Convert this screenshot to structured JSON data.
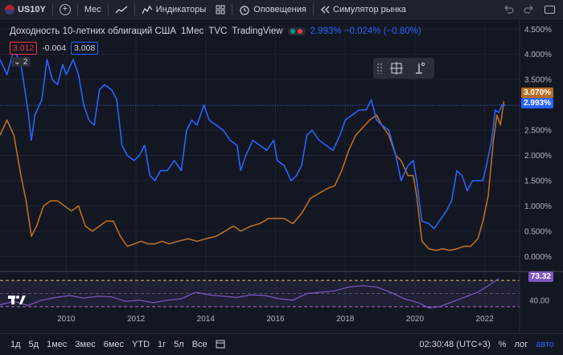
{
  "toolbar": {
    "symbol": "US10Y",
    "interval": "Мес",
    "indicators": "Индикаторы",
    "alerts": "Оповещения",
    "replay": "Симулятор рынка"
  },
  "legend": {
    "title": "Доходность 10-летних облигаций США",
    "interval": "1Мес",
    "exchange": "TVC",
    "source": "TradingView",
    "quote": "2.993% −0.024% (−0.80%)"
  },
  "quote_row": {
    "bid": "3.012",
    "spread": "-0.004",
    "ask": "3.008",
    "collapse_count": "2"
  },
  "price_tags": {
    "orange": "3.070%",
    "blue": "2.993%",
    "rsi": "73.32"
  },
  "colors": {
    "background": "#131722",
    "blue_line": "#2962ff",
    "orange_line": "#b86e22",
    "rsi_line": "#7e57c2",
    "tag_orange": "#b86e22",
    "tag_blue": "#2962ff"
  },
  "bottombar": {
    "ranges": [
      "1д",
      "5д",
      "1мес",
      "3мес",
      "6мес",
      "YTD",
      "1г",
      "5л",
      "Все"
    ],
    "time": "02:30:48 (UTC+3)",
    "percent": "%",
    "log": "лог",
    "auto": "авто"
  },
  "chart_data": {
    "type": "line",
    "y_axis_ticks": [
      "4.500%",
      "4.000%",
      "3.500%",
      "3.000%",
      "2.500%",
      "2.000%",
      "1.500%",
      "1.000%",
      "0.500%",
      "0.000%"
    ],
    "y_axis_values": [
      4.5,
      4.0,
      3.5,
      3.0,
      2.5,
      2.0,
      1.5,
      1.0,
      0.5,
      0.0
    ],
    "ylim": [
      -0.25,
      4.6
    ],
    "x_axis_ticks": [
      "2010",
      "2012",
      "2014",
      "2016",
      "2018",
      "2020",
      "2022"
    ],
    "xlim": [
      2008.1,
      2023.0
    ],
    "series": [
      {
        "color": "#2962ff",
        "points": [
          [
            2008.1,
            3.9
          ],
          [
            2008.3,
            3.6
          ],
          [
            2008.5,
            4.1
          ],
          [
            2008.7,
            3.8
          ],
          [
            2008.9,
            2.9
          ],
          [
            2009.0,
            2.3
          ],
          [
            2009.1,
            2.8
          ],
          [
            2009.3,
            3.1
          ],
          [
            2009.45,
            3.9
          ],
          [
            2009.6,
            3.5
          ],
          [
            2009.75,
            3.4
          ],
          [
            2009.9,
            3.8
          ],
          [
            2010.0,
            3.6
          ],
          [
            2010.2,
            3.9
          ],
          [
            2010.35,
            3.6
          ],
          [
            2010.5,
            3.0
          ],
          [
            2010.65,
            2.7
          ],
          [
            2010.8,
            2.6
          ],
          [
            2010.95,
            3.3
          ],
          [
            2011.1,
            3.4
          ],
          [
            2011.3,
            3.3
          ],
          [
            2011.45,
            3.1
          ],
          [
            2011.6,
            2.2
          ],
          [
            2011.75,
            2.0
          ],
          [
            2011.95,
            1.9
          ],
          [
            2012.1,
            2.0
          ],
          [
            2012.25,
            2.2
          ],
          [
            2012.4,
            1.6
          ],
          [
            2012.55,
            1.5
          ],
          [
            2012.7,
            1.7
          ],
          [
            2012.9,
            1.7
          ],
          [
            2013.1,
            1.9
          ],
          [
            2013.3,
            1.7
          ],
          [
            2013.45,
            2.5
          ],
          [
            2013.6,
            2.7
          ],
          [
            2013.75,
            2.6
          ],
          [
            2013.95,
            3.0
          ],
          [
            2014.1,
            2.7
          ],
          [
            2014.3,
            2.6
          ],
          [
            2014.5,
            2.5
          ],
          [
            2014.7,
            2.3
          ],
          [
            2014.9,
            2.2
          ],
          [
            2015.0,
            1.7
          ],
          [
            2015.15,
            2.0
          ],
          [
            2015.35,
            2.3
          ],
          [
            2015.55,
            2.2
          ],
          [
            2015.75,
            2.1
          ],
          [
            2015.95,
            2.3
          ],
          [
            2016.05,
            1.9
          ],
          [
            2016.25,
            1.8
          ],
          [
            2016.45,
            1.5
          ],
          [
            2016.6,
            1.6
          ],
          [
            2016.75,
            1.8
          ],
          [
            2016.9,
            2.4
          ],
          [
            2017.05,
            2.5
          ],
          [
            2017.25,
            2.3
          ],
          [
            2017.45,
            2.2
          ],
          [
            2017.65,
            2.1
          ],
          [
            2017.85,
            2.4
          ],
          [
            2018.0,
            2.7
          ],
          [
            2018.2,
            2.8
          ],
          [
            2018.4,
            2.9
          ],
          [
            2018.6,
            2.9
          ],
          [
            2018.75,
            3.1
          ],
          [
            2018.9,
            2.7
          ],
          [
            2019.05,
            2.6
          ],
          [
            2019.25,
            2.5
          ],
          [
            2019.45,
            2.0
          ],
          [
            2019.6,
            1.5
          ],
          [
            2019.8,
            1.8
          ],
          [
            2019.95,
            1.9
          ],
          [
            2020.05,
            1.5
          ],
          [
            2020.2,
            0.7
          ],
          [
            2020.4,
            0.65
          ],
          [
            2020.55,
            0.55
          ],
          [
            2020.7,
            0.7
          ],
          [
            2020.9,
            0.9
          ],
          [
            2021.05,
            1.1
          ],
          [
            2021.2,
            1.7
          ],
          [
            2021.35,
            1.6
          ],
          [
            2021.5,
            1.3
          ],
          [
            2021.65,
            1.5
          ],
          [
            2021.8,
            1.5
          ],
          [
            2021.95,
            1.5
          ],
          [
            2022.05,
            1.8
          ],
          [
            2022.2,
            2.3
          ],
          [
            2022.3,
            2.9
          ],
          [
            2022.4,
            2.85
          ],
          [
            2022.5,
            3.0
          ],
          [
            2022.6,
            2.99
          ]
        ]
      },
      {
        "color": "#b86e22",
        "points": [
          [
            2008.1,
            2.4
          ],
          [
            2008.3,
            2.7
          ],
          [
            2008.5,
            2.4
          ],
          [
            2008.7,
            1.6
          ],
          [
            2008.85,
            1.1
          ],
          [
            2009.0,
            0.4
          ],
          [
            2009.15,
            0.6
          ],
          [
            2009.35,
            1.0
          ],
          [
            2009.55,
            1.1
          ],
          [
            2009.75,
            1.1
          ],
          [
            2009.95,
            1.0
          ],
          [
            2010.15,
            0.9
          ],
          [
            2010.35,
            1.0
          ],
          [
            2010.55,
            0.6
          ],
          [
            2010.75,
            0.5
          ],
          [
            2010.95,
            0.6
          ],
          [
            2011.15,
            0.7
          ],
          [
            2011.35,
            0.7
          ],
          [
            2011.55,
            0.4
          ],
          [
            2011.75,
            0.2
          ],
          [
            2011.95,
            0.25
          ],
          [
            2012.15,
            0.3
          ],
          [
            2012.35,
            0.25
          ],
          [
            2012.55,
            0.25
          ],
          [
            2012.75,
            0.3
          ],
          [
            2012.95,
            0.25
          ],
          [
            2013.2,
            0.3
          ],
          [
            2013.5,
            0.35
          ],
          [
            2013.75,
            0.3
          ],
          [
            2014.0,
            0.35
          ],
          [
            2014.3,
            0.4
          ],
          [
            2014.55,
            0.5
          ],
          [
            2014.8,
            0.6
          ],
          [
            2015.0,
            0.5
          ],
          [
            2015.3,
            0.6
          ],
          [
            2015.55,
            0.65
          ],
          [
            2015.8,
            0.75
          ],
          [
            2016.0,
            0.75
          ],
          [
            2016.25,
            0.75
          ],
          [
            2016.5,
            0.65
          ],
          [
            2016.75,
            0.85
          ],
          [
            2017.0,
            1.15
          ],
          [
            2017.25,
            1.25
          ],
          [
            2017.5,
            1.35
          ],
          [
            2017.7,
            1.4
          ],
          [
            2017.9,
            1.7
          ],
          [
            2018.1,
            2.1
          ],
          [
            2018.3,
            2.4
          ],
          [
            2018.5,
            2.55
          ],
          [
            2018.7,
            2.7
          ],
          [
            2018.9,
            2.8
          ],
          [
            2019.05,
            2.6
          ],
          [
            2019.25,
            2.4
          ],
          [
            2019.45,
            2.0
          ],
          [
            2019.6,
            1.9
          ],
          [
            2019.8,
            1.6
          ],
          [
            2019.95,
            1.6
          ],
          [
            2020.05,
            1.2
          ],
          [
            2020.2,
            0.3
          ],
          [
            2020.4,
            0.15
          ],
          [
            2020.6,
            0.12
          ],
          [
            2020.8,
            0.15
          ],
          [
            2021.0,
            0.12
          ],
          [
            2021.2,
            0.15
          ],
          [
            2021.4,
            0.2
          ],
          [
            2021.6,
            0.2
          ],
          [
            2021.8,
            0.35
          ],
          [
            2021.95,
            0.7
          ],
          [
            2022.1,
            1.2
          ],
          [
            2022.25,
            2.3
          ],
          [
            2022.35,
            2.8
          ],
          [
            2022.45,
            2.6
          ],
          [
            2022.55,
            3.07
          ]
        ]
      }
    ]
  },
  "rsi_data": {
    "type": "line",
    "y_tick": "40.00",
    "ylim": [
      20,
      80
    ],
    "band_upper": 70,
    "band_lower": 30,
    "points": [
      [
        2008.1,
        33
      ],
      [
        2008.5,
        38
      ],
      [
        2008.9,
        32
      ],
      [
        2009.3,
        40
      ],
      [
        2009.7,
        44
      ],
      [
        2010.1,
        47
      ],
      [
        2010.5,
        43
      ],
      [
        2010.9,
        46
      ],
      [
        2011.3,
        45
      ],
      [
        2011.7,
        38
      ],
      [
        2012.1,
        40
      ],
      [
        2012.5,
        36
      ],
      [
        2012.9,
        40
      ],
      [
        2013.3,
        42
      ],
      [
        2013.7,
        52
      ],
      [
        2014.1,
        48
      ],
      [
        2014.5,
        46
      ],
      [
        2014.9,
        44
      ],
      [
        2015.3,
        48
      ],
      [
        2015.7,
        47
      ],
      [
        2016.1,
        42
      ],
      [
        2016.5,
        40
      ],
      [
        2016.9,
        50
      ],
      [
        2017.3,
        52
      ],
      [
        2017.7,
        54
      ],
      [
        2018.1,
        60
      ],
      [
        2018.5,
        62
      ],
      [
        2018.9,
        60
      ],
      [
        2019.3,
        52
      ],
      [
        2019.7,
        42
      ],
      [
        2020.1,
        36
      ],
      [
        2020.4,
        28
      ],
      [
        2020.7,
        30
      ],
      [
        2021.0,
        36
      ],
      [
        2021.4,
        44
      ],
      [
        2021.8,
        52
      ],
      [
        2022.1,
        62
      ],
      [
        2022.4,
        73
      ]
    ]
  }
}
